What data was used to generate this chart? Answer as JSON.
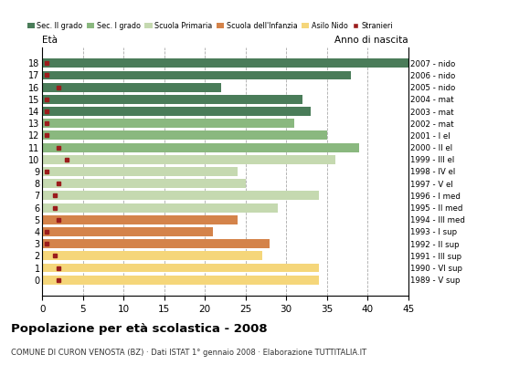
{
  "ages": [
    18,
    17,
    16,
    15,
    14,
    13,
    12,
    11,
    10,
    9,
    8,
    7,
    6,
    5,
    4,
    3,
    2,
    1,
    0
  ],
  "birth_years": [
    "1989 - V sup",
    "1990 - VI sup",
    "1991 - III sup",
    "1992 - II sup",
    "1993 - I sup",
    "1994 - III med",
    "1995 - II med",
    "1996 - I med",
    "1997 - V el",
    "1998 - IV el",
    "1999 - III el",
    "2000 - II el",
    "2001 - I el",
    "2002 - mat",
    "2003 - mat",
    "2004 - mat",
    "2005 - nido",
    "2006 - nido",
    "2007 - nido"
  ],
  "bar_values": [
    45,
    38,
    22,
    32,
    33,
    31,
    35,
    39,
    36,
    24,
    25,
    34,
    29,
    24,
    21,
    28,
    27,
    34,
    34
  ],
  "stranieri": [
    0.5,
    0.5,
    2,
    0.5,
    0.5,
    0.5,
    0.5,
    2,
    3,
    0.5,
    2,
    1.5,
    1.5,
    2,
    0.5,
    0.5,
    1.5,
    2,
    2
  ],
  "bar_colors_by_age": {
    "18": "#4a7c59",
    "17": "#4a7c59",
    "16": "#4a7c59",
    "15": "#4a7c59",
    "14": "#4a7c59",
    "13": "#8ab87f",
    "12": "#8ab87f",
    "11": "#8ab87f",
    "10": "#c5d9b0",
    "9": "#c5d9b0",
    "8": "#c5d9b0",
    "7": "#c5d9b0",
    "6": "#c5d9b0",
    "5": "#d4834a",
    "4": "#d4834a",
    "3": "#d4834a",
    "2": "#f5d67a",
    "1": "#f5d67a",
    "0": "#f5d67a"
  },
  "stranieri_color": "#9b1c1c",
  "title": "Popolazione per età scolastica - 2008",
  "subtitle": "COMUNE DI CURON VENOSTA (BZ) · Dati ISTAT 1° gennaio 2008 · Elaborazione TUTTITALIA.IT",
  "xlabel_eta": "Età",
  "xlabel_anno": "Anno di nascita",
  "xlim": [
    0,
    45
  ],
  "xticks": [
    0,
    5,
    10,
    15,
    20,
    25,
    30,
    35,
    40,
    45
  ],
  "background_color": "#ffffff",
  "legend_colors": [
    "#4a7c59",
    "#8ab87f",
    "#c5d9b0",
    "#d4834a",
    "#f5d67a",
    "#9b1c1c"
  ],
  "legend_labels": [
    "Sec. II grado",
    "Sec. I grado",
    "Scuola Primaria",
    "Scuola dell'Infanzia",
    "Asilo Nido",
    "Stranieri"
  ]
}
